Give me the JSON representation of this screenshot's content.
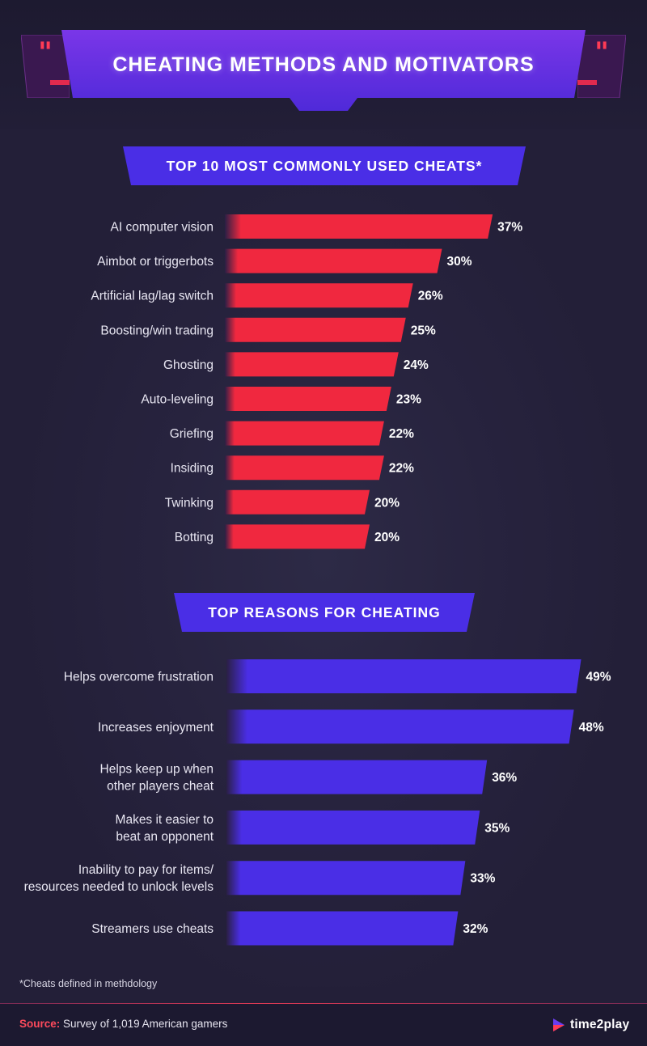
{
  "title": "CHEATING METHODS AND MOTIVATORS",
  "quote_left": "\"",
  "quote_right": "\"",
  "colors": {
    "cheats_bar": "#f0283f",
    "reasons_bar": "#4a2ee6",
    "accent": "#ff4a5c"
  },
  "chart_data": [
    {
      "type": "bar",
      "orientation": "horizontal",
      "title": "TOP 10 MOST COMMONLY USED CHEATS*",
      "categories": [
        "AI computer vision",
        "Aimbot or triggerbots",
        "Artificial lag/lag switch",
        "Boosting/win trading",
        "Ghosting",
        "Auto-leveling",
        "Griefing",
        "Insiding",
        "Twinking",
        "Botting"
      ],
      "values": [
        37,
        30,
        26,
        25,
        24,
        23,
        22,
        22,
        20,
        20
      ],
      "value_labels": [
        "37%",
        "30%",
        "26%",
        "25%",
        "24%",
        "23%",
        "22%",
        "22%",
        "20%",
        "20%"
      ],
      "unit": "%",
      "color": "#f0283f"
    },
    {
      "type": "bar",
      "orientation": "horizontal",
      "title": "TOP REASONS FOR CHEATING",
      "categories": [
        [
          "Helps overcome frustration"
        ],
        [
          "Increases enjoyment"
        ],
        [
          "Helps keep up when",
          "other players cheat"
        ],
        [
          "Makes it easier to",
          "beat an opponent"
        ],
        [
          "Inability to pay for items/",
          "resources needed to unlock levels"
        ],
        [
          "Streamers use cheats"
        ]
      ],
      "values": [
        49,
        48,
        36,
        35,
        33,
        32
      ],
      "value_labels": [
        "49%",
        "48%",
        "36%",
        "35%",
        "33%",
        "32%"
      ],
      "unit": "%",
      "color": "#4a2ee6"
    }
  ],
  "footnote": "*Cheats defined in methdology",
  "source": {
    "label": "Source:",
    "text": "Survey of 1,019 American gamers"
  },
  "brand": {
    "name": "time2play",
    "icon": "play-triangle-icon"
  }
}
